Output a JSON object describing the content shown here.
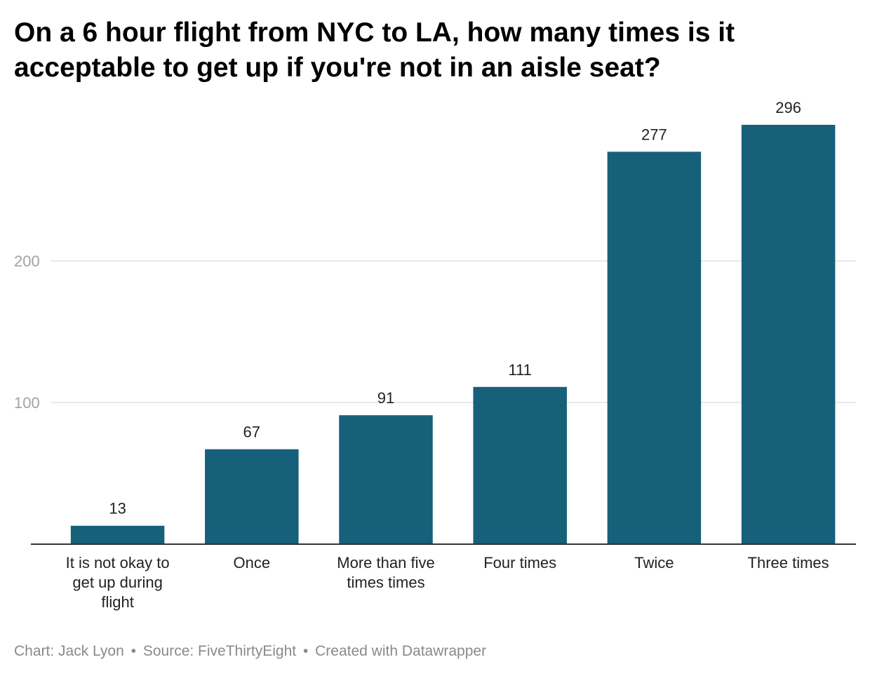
{
  "chart_data": {
    "type": "bar",
    "title": "On a 6 hour flight from NYC to LA, how many times is it acceptable to get up if you're not in an aisle seat?",
    "categories": [
      "It is not okay to get up during flight",
      "Once",
      "More than five times times",
      "Four times",
      "Twice",
      "Three times"
    ],
    "category_lines": [
      [
        "It is not okay to",
        "get up during",
        "flight"
      ],
      [
        "Once"
      ],
      [
        "More than five",
        "times times"
      ],
      [
        "Four times"
      ],
      [
        "Twice"
      ],
      [
        "Three times"
      ]
    ],
    "values": [
      13,
      67,
      91,
      111,
      277,
      296
    ],
    "data_labels": [
      "13",
      "67",
      "91",
      "111",
      "277",
      "296"
    ],
    "ylim": [
      0,
      296
    ],
    "yticks": [
      100,
      200
    ],
    "ytick_labels": [
      "100",
      "200"
    ],
    "xlabel": "",
    "ylabel": "",
    "grid": true,
    "legend": "none",
    "bar_color": "#17607a",
    "grid_color": "#e0e0e0",
    "tick_label_color": "#a3a3a3"
  },
  "footer": {
    "chart_credit": "Chart: Jack Lyon",
    "separator": "•",
    "source": "Source: FiveThirtyEight",
    "created_with": "Created with Datawrapper"
  }
}
